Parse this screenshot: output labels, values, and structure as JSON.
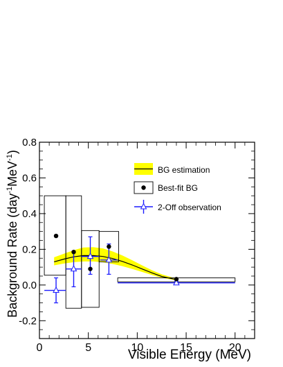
{
  "chart_data": {
    "type": "scatter",
    "xlabel": "Visible Energy (MeV)",
    "ylabel_main": "Background Rate (day",
    "ylabel_sup1": "-1",
    "ylabel_mid": "MeV",
    "ylabel_sup2": "-1",
    "ylabel_end": ")",
    "xlim": [
      0,
      22
    ],
    "ylim": [
      -0.3,
      0.8
    ],
    "x_ticks": [
      {
        "value": 0,
        "label": "0"
      },
      {
        "value": 5,
        "label": "5"
      },
      {
        "value": 10,
        "label": "10"
      },
      {
        "value": 15,
        "label": "15"
      },
      {
        "value": 20,
        "label": "20"
      }
    ],
    "y_ticks": [
      {
        "value": -0.2,
        "label": "-0.2"
      },
      {
        "value": 0.0,
        "label": "0.0"
      },
      {
        "value": 0.2,
        "label": "0.2"
      },
      {
        "value": 0.4,
        "label": "0.4"
      },
      {
        "value": 0.6,
        "label": "0.6"
      },
      {
        "value": 0.8,
        "label": "0.8"
      }
    ],
    "legend": {
      "placement": "top-right",
      "entries": [
        {
          "label": "BG estimation",
          "kind": "band"
        },
        {
          "label": "Best-fit BG",
          "kind": "box-marker"
        },
        {
          "label": "2-Off observation",
          "kind": "errorbar-triangle"
        }
      ]
    },
    "colors": {
      "band": "#ffff00",
      "curve": "#000000",
      "observation": "#1a1aff",
      "fit": "#000000"
    },
    "bg_estimation": {
      "x": [
        1.5,
        2.5,
        3.5,
        4.5,
        5.5,
        6.5,
        7.5,
        8.5,
        9.5,
        10.5,
        11.5,
        12.5,
        14.0
      ],
      "center": [
        0.13,
        0.145,
        0.158,
        0.165,
        0.165,
        0.16,
        0.148,
        0.132,
        0.112,
        0.09,
        0.068,
        0.048,
        0.03
      ],
      "lower": [
        0.11,
        0.12,
        0.128,
        0.132,
        0.132,
        0.127,
        0.118,
        0.105,
        0.09,
        0.073,
        0.056,
        0.04,
        0.026
      ],
      "upper": [
        0.155,
        0.175,
        0.195,
        0.21,
        0.212,
        0.205,
        0.188,
        0.165,
        0.138,
        0.11,
        0.083,
        0.06,
        0.036
      ]
    },
    "best_fit_bg": {
      "x": [
        1.7,
        3.5,
        5.2,
        7.1,
        14.0
      ],
      "y": [
        0.275,
        0.185,
        0.09,
        0.215,
        0.033
      ],
      "box_xmin": [
        0.5,
        2.7,
        4.3,
        6.1,
        8.0
      ],
      "box_xmax": [
        2.7,
        4.3,
        6.1,
        8.1,
        20.0
      ],
      "box_ymin": [
        0.055,
        -0.13,
        -0.125,
        0.13,
        0.018
      ],
      "box_ymax": [
        0.5,
        0.5,
        0.305,
        0.3,
        0.04
      ]
    },
    "two_off_observation": {
      "x": [
        1.7,
        3.5,
        5.2,
        7.1,
        14.0
      ],
      "y": [
        -0.03,
        0.09,
        0.16,
        0.14,
        0.012
      ],
      "xerr_low": [
        1.2,
        0.8,
        0.9,
        0.9,
        6.0
      ],
      "xerr_high": [
        1.0,
        0.8,
        0.9,
        0.9,
        6.0
      ],
      "yerr_low": [
        0.07,
        0.1,
        0.1,
        0.08,
        0.008
      ],
      "yerr_high": [
        0.07,
        0.1,
        0.11,
        0.09,
        0.01
      ]
    }
  }
}
